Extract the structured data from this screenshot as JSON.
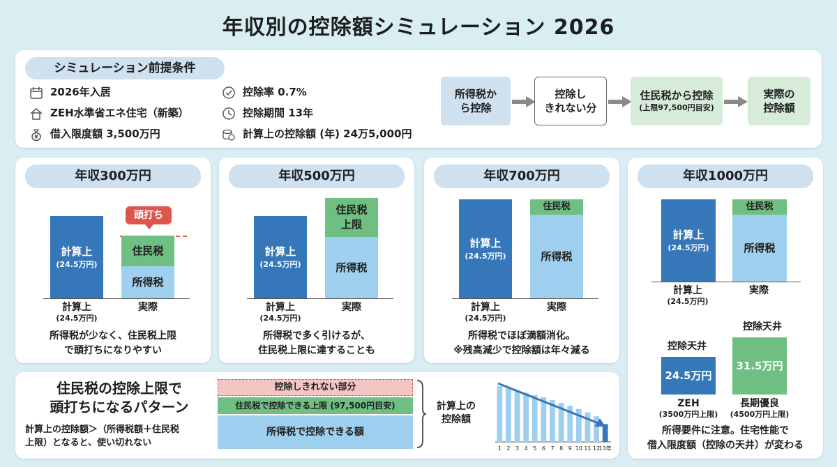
{
  "title": "年収別の控除額シミュレーション 2026",
  "premise": {
    "heading": "シミュレーション前提条件",
    "items": [
      {
        "icon": "calendar-icon",
        "text": "2026年入居"
      },
      {
        "icon": "house-icon",
        "text": "ZEH水準省エネ住宅（新築）"
      },
      {
        "icon": "money-bag-icon",
        "text": "借入限度額 3,500万円"
      },
      {
        "icon": "check-circle-icon",
        "text": "控除率 0.7%"
      },
      {
        "icon": "clock-icon",
        "text": "控除期間 13年"
      },
      {
        "icon": "coins-icon",
        "text": "計算上の控除額 (年) 24万5,000円"
      }
    ],
    "flow": [
      {
        "text": "所得税から控除",
        "line1": "所得税か",
        "line2": "ら控除"
      },
      {
        "line1": "控除し",
        "line2": "きれない分"
      },
      {
        "line1": "住民税から控除",
        "line2": "(上限97,500円目安)"
      },
      {
        "line1": "実際の",
        "line2": "控除額"
      }
    ]
  },
  "panels": [
    {
      "heading": "年収300万円",
      "calc_top": "計算上",
      "calc_sub": "(24.5万円)",
      "resident": "住民税",
      "income": "所得税",
      "label_calc": "計算上",
      "label_calc_sub": "(24.5万円)",
      "label_actual": "実際",
      "tag": "頭打ち",
      "note1": "所得税が少なく、住民税上限",
      "note2": "で頭打ちになりやすい"
    },
    {
      "heading": "年収500万円",
      "calc_top": "計算上",
      "calc_sub": "(24.5万円)",
      "resident1": "住民税",
      "resident2": "上限",
      "income": "所得税",
      "label_calc": "計算上",
      "label_calc_sub": "(24.5万円)",
      "label_actual": "実際",
      "note1": "所得税で多く引けるが、",
      "note2": "住民税上限に達することも"
    },
    {
      "heading": "年収700万円",
      "calc_top": "計算上",
      "calc_sub": "(24.5万円)",
      "resident": "住民税",
      "income": "所得税",
      "label_calc": "計算上",
      "label_calc_sub": "(24.5万円)",
      "label_actual": "実際",
      "note1": "所得税でほぼ満額消化。",
      "note2": "※残高減少で控除額は年々減る"
    },
    {
      "heading": "年収1000万円",
      "calc_top": "計算上",
      "calc_sub": "(24.5万円)",
      "resident": "住民税",
      "income": "所得税",
      "label_calc": "計算上",
      "label_calc_sub": "(24.5万円)",
      "label_actual": "実際",
      "ceiling_label": "控除天井",
      "zeh_value": "24.5万円",
      "long_value": "31.5万円",
      "zeh_label": "ZEH",
      "zeh_sub": "(3500万円上限)",
      "long_label": "長期優良",
      "long_sub": "(4500万円上限)",
      "note1": "所得要件に注意。住宅性能で",
      "note2": "借入限度額（控除の天井）が変わる"
    }
  ],
  "pattern": {
    "heading1": "住民税の控除上限で",
    "heading2": "頭打ちになるパターン",
    "desc1": "計算上の控除額＞（所得税額＋住民税",
    "desc2": "上限）となると、使い切れない",
    "layer_top": "控除しきれない部分",
    "layer_mid": "住民税で控除できる上限 (97,500円目安)",
    "layer_bottom": "所得税で控除できる額",
    "brace_label1": "計算上の",
    "brace_label2": "控除額"
  },
  "decline_chart": {
    "type": "bar",
    "categories": [
      "1",
      "2",
      "3",
      "4",
      "5",
      "6",
      "7",
      "8",
      "9",
      "10",
      "11",
      "12",
      "13年"
    ],
    "values": [
      100,
      96,
      92,
      88,
      84,
      80,
      75,
      70,
      65,
      59,
      53,
      46,
      32
    ],
    "colors": {
      "bar": "#9ecfee",
      "last": "#3577b8",
      "arrow": "#3577b8"
    }
  },
  "colors": {
    "dark": "#3577b8",
    "green": "#6fbf82",
    "light": "#9ecfee",
    "red": "#e0544e",
    "pill": "#cfe0ef"
  }
}
